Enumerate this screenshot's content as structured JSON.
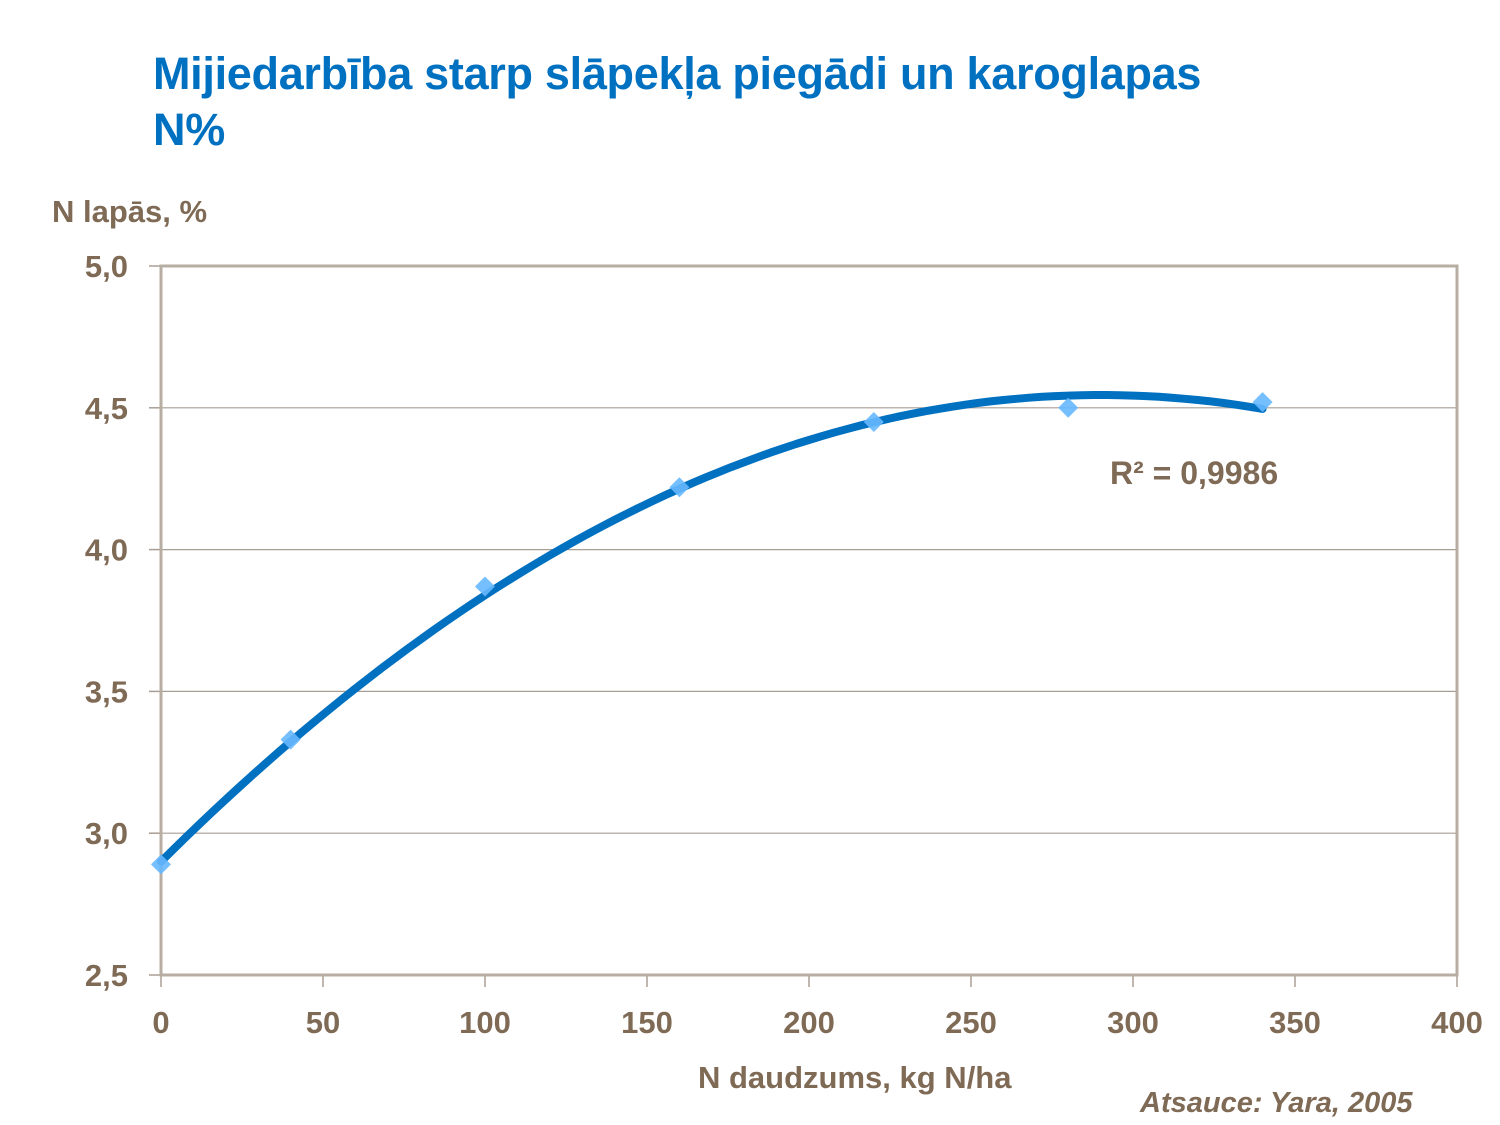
{
  "title": "Mijiedarbība starp slāpekļa piegādi un karoglapas N%",
  "title_lines": [
    "Mijiedarbība starp slāpekļa piegādi un karoglapas",
    "N%"
  ],
  "axes": {
    "ylabel": "N lapās, %",
    "xlabel": "N daudzums, kg N/ha"
  },
  "source": "Atsauce: Yara, 2005",
  "annotation": "R² = 0,9986",
  "colors": {
    "title": "#0070c0",
    "text": "#7f6a55",
    "trendline": "#0070c0",
    "markers": "#66b8ff",
    "grid": "#a89e94",
    "border": "#b8ada2"
  },
  "chart_data": {
    "type": "scatter",
    "title": "Mijiedarbība starp slāpekļa piegādi un karoglapas N%",
    "xlabel": "N daudzums, kg N/ha",
    "ylabel": "N lapās, %",
    "xlim": [
      0,
      400
    ],
    "ylim": [
      2.5,
      5.0
    ],
    "x_ticks": [
      "0",
      "50",
      "100",
      "150",
      "200",
      "250",
      "300",
      "350",
      "400"
    ],
    "y_ticks": [
      "2,5",
      "3,0",
      "3,5",
      "4,0",
      "4,5",
      "5,0"
    ],
    "grid": "horizontal",
    "legend": "none",
    "series": [
      {
        "name": "N lapās",
        "marker": "diamond",
        "x": [
          0,
          40,
          100,
          160,
          220,
          280,
          340
        ],
        "values": [
          2.89,
          3.33,
          3.87,
          4.22,
          4.45,
          4.5,
          4.52
        ]
      }
    ],
    "trendline": {
      "type": "polynomial-2",
      "coefficients": {
        "a": 2.9,
        "b": 0.011345,
        "c": -1.956e-05
      },
      "x_range": [
        0,
        340
      ],
      "r_squared": 0.9986,
      "label": "R² = 0,9986"
    },
    "annotations": [
      "R² = 0,9986",
      "Atsauce: Yara, 2005"
    ]
  }
}
